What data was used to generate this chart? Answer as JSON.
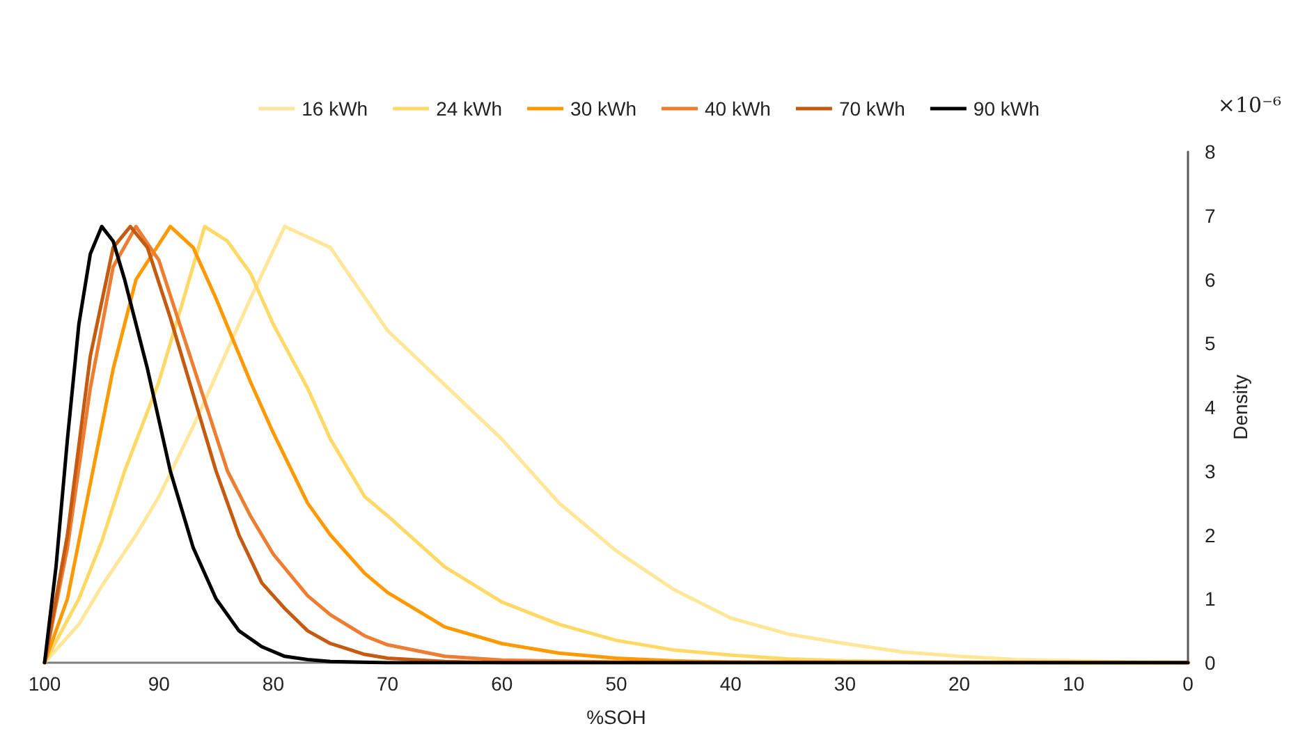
{
  "chart_data": {
    "type": "line",
    "xlabel": "%SOH",
    "ylabel": "Density",
    "annotations": [
      "×10⁻⁶"
    ],
    "xlim": [
      100,
      0
    ],
    "xticks": [
      100,
      90,
      80,
      70,
      60,
      50,
      40,
      30,
      20,
      10,
      0
    ],
    "ylim": [
      0,
      8
    ],
    "yticks": [
      0,
      1,
      2,
      3,
      4,
      5,
      6,
      7,
      8
    ],
    "grid": false,
    "legend": "top",
    "marker": "none",
    "line_style": "solid",
    "series": [
      {
        "name": "16 kWh",
        "color": "#ffe699",
        "x": [
          100,
          97,
          95,
          92,
          90,
          87,
          85,
          82,
          79,
          75,
          70,
          65,
          60,
          55,
          50,
          45,
          40,
          35,
          30,
          25,
          20,
          15,
          10,
          5,
          0
        ],
        "values": [
          0,
          0.6,
          1.2,
          2.0,
          2.6,
          3.7,
          4.5,
          5.7,
          6.83,
          6.5,
          5.2,
          4.35,
          3.5,
          2.5,
          1.75,
          1.15,
          0.7,
          0.45,
          0.3,
          0.17,
          0.1,
          0.05,
          0.03,
          0.01,
          0
        ]
      },
      {
        "name": "24 kWh",
        "color": "#ffd966",
        "x": [
          100,
          97,
          95,
          93,
          90,
          88,
          86,
          84,
          82,
          80,
          77,
          75,
          72,
          70,
          65,
          60,
          55,
          50,
          45,
          40,
          35,
          30,
          20,
          10,
          0
        ],
        "values": [
          0,
          1.0,
          1.9,
          3.0,
          4.4,
          5.6,
          6.83,
          6.6,
          6.1,
          5.3,
          4.3,
          3.5,
          2.6,
          2.3,
          1.5,
          0.95,
          0.6,
          0.35,
          0.2,
          0.12,
          0.06,
          0.03,
          0.01,
          0,
          0
        ]
      },
      {
        "name": "30 kWh",
        "color": "#ff9900",
        "x": [
          100,
          98,
          96,
          94,
          92,
          89,
          87,
          85,
          82,
          80,
          77,
          75,
          72,
          70,
          65,
          60,
          55,
          50,
          45,
          40,
          0
        ],
        "values": [
          0,
          1.0,
          2.8,
          4.6,
          6.0,
          6.83,
          6.5,
          5.7,
          4.4,
          3.6,
          2.5,
          2.0,
          1.4,
          1.1,
          0.56,
          0.3,
          0.15,
          0.07,
          0.03,
          0.01,
          0
        ]
      },
      {
        "name": "40 kWh",
        "color": "#ed7d31",
        "x": [
          100,
          98,
          96,
          94,
          92,
          90,
          88,
          86,
          84,
          82,
          80,
          77,
          75,
          72,
          70,
          65,
          60,
          50,
          0
        ],
        "values": [
          0,
          1.8,
          4.3,
          6.2,
          6.83,
          6.3,
          5.2,
          4.1,
          3.0,
          2.3,
          1.7,
          1.05,
          0.75,
          0.42,
          0.28,
          0.1,
          0.04,
          0.01,
          0
        ]
      },
      {
        "name": "70 kWh",
        "color": "#c55a11",
        "x": [
          100,
          98,
          96,
          94,
          92.5,
          91,
          89,
          87,
          85,
          83,
          81,
          79,
          77,
          75,
          72,
          70,
          65,
          60,
          0
        ],
        "values": [
          0,
          2.0,
          4.8,
          6.5,
          6.83,
          6.5,
          5.4,
          4.2,
          3.0,
          2.0,
          1.25,
          0.85,
          0.5,
          0.3,
          0.13,
          0.07,
          0.02,
          0,
          0
        ]
      },
      {
        "name": "90 kWh",
        "color": "#000000",
        "x": [
          100,
          99,
          98,
          97,
          96,
          95,
          94,
          93,
          91,
          89,
          87,
          85,
          83,
          81,
          79,
          77,
          75,
          70,
          0
        ],
        "values": [
          0,
          1.5,
          3.5,
          5.3,
          6.4,
          6.83,
          6.6,
          6.0,
          4.6,
          3.0,
          1.8,
          1.0,
          0.5,
          0.25,
          0.1,
          0.05,
          0.02,
          0,
          0
        ]
      }
    ]
  }
}
